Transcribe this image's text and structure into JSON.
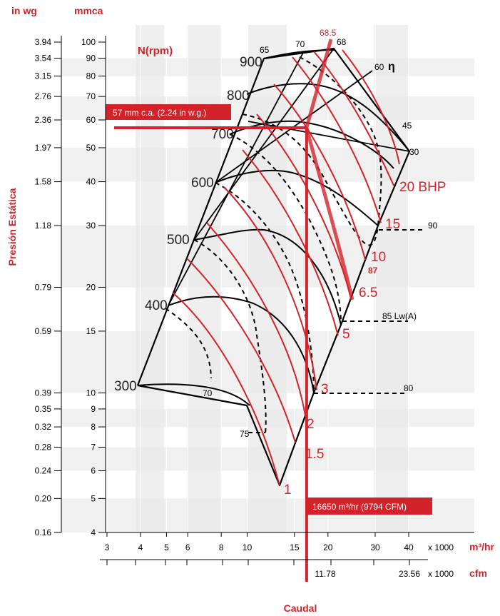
{
  "chart_data": {
    "type": "line",
    "title": "",
    "curve_label": "N(rpm)",
    "y_axis": {
      "label": "Presión Estática",
      "units_left": "in wg",
      "units_right": "mmca",
      "ticks_mmca": [
        "4",
        "5",
        "6",
        "7",
        "8",
        "9",
        "10",
        "15",
        "20",
        "30",
        "40",
        "50",
        "60",
        "70",
        "80",
        "90",
        "100"
      ],
      "ticks_inwg": [
        "0.16",
        "0.20",
        "0.24",
        "0.28",
        "0.32",
        "0.35",
        "0.39",
        "0.59",
        "0.79",
        "1.18",
        "1.58",
        "1.97",
        "2.36",
        "2.76",
        "3.15",
        "3.54",
        "3.94"
      ],
      "scale": "log",
      "range_mmca": [
        4,
        110
      ]
    },
    "x_axis": {
      "label": "Caudal",
      "units_m3h": "m³/hr",
      "units_cfm": "cfm",
      "multiplier": "x   1000",
      "ticks_m3h": [
        "3",
        "4",
        "5",
        "6",
        "8",
        "10",
        "15",
        "20",
        "30",
        "40"
      ],
      "ticks_cfm": [
        "11.78",
        "23.56"
      ],
      "scale": "log",
      "range_m3h": [
        3,
        50
      ]
    },
    "rpm_curves": [
      {
        "label": "300",
        "pressure_mmca": 10.5
      },
      {
        "label": "400",
        "pressure_mmca": 17.5
      },
      {
        "label": "500",
        "pressure_mmca": 27.5
      },
      {
        "label": "600",
        "pressure_mmca": 40
      },
      {
        "label": "700",
        "pressure_mmca": 54
      },
      {
        "label": "800",
        "pressure_mmca": 71
      },
      {
        "label": "900",
        "pressure_mmca": 90
      }
    ],
    "power_lines_bhp": [
      "1",
      "1.5",
      "2",
      "3",
      "5",
      "6.5",
      "10",
      "15",
      "20 BHP"
    ],
    "efficiency_labels": [
      "65",
      "70",
      "68.5",
      "68",
      "60",
      "45",
      "30",
      "70",
      "75",
      "η"
    ],
    "noise_labels": [
      "90",
      "87",
      "85 Lw(A)",
      "80"
    ],
    "operating_point": {
      "flow_m3h": 16650,
      "flow_label": "16650 m³/hr (9794 CFM)",
      "pressure_mmca": 57,
      "pressure_label": "57 mm c.a. (2.24 in w.g.)",
      "efficiency_pct": 68.5,
      "noise_lwa": 87
    },
    "grid": true,
    "colors": {
      "accent": "#d2232a",
      "curve": "#000000",
      "band": "#e8e8e8"
    }
  }
}
